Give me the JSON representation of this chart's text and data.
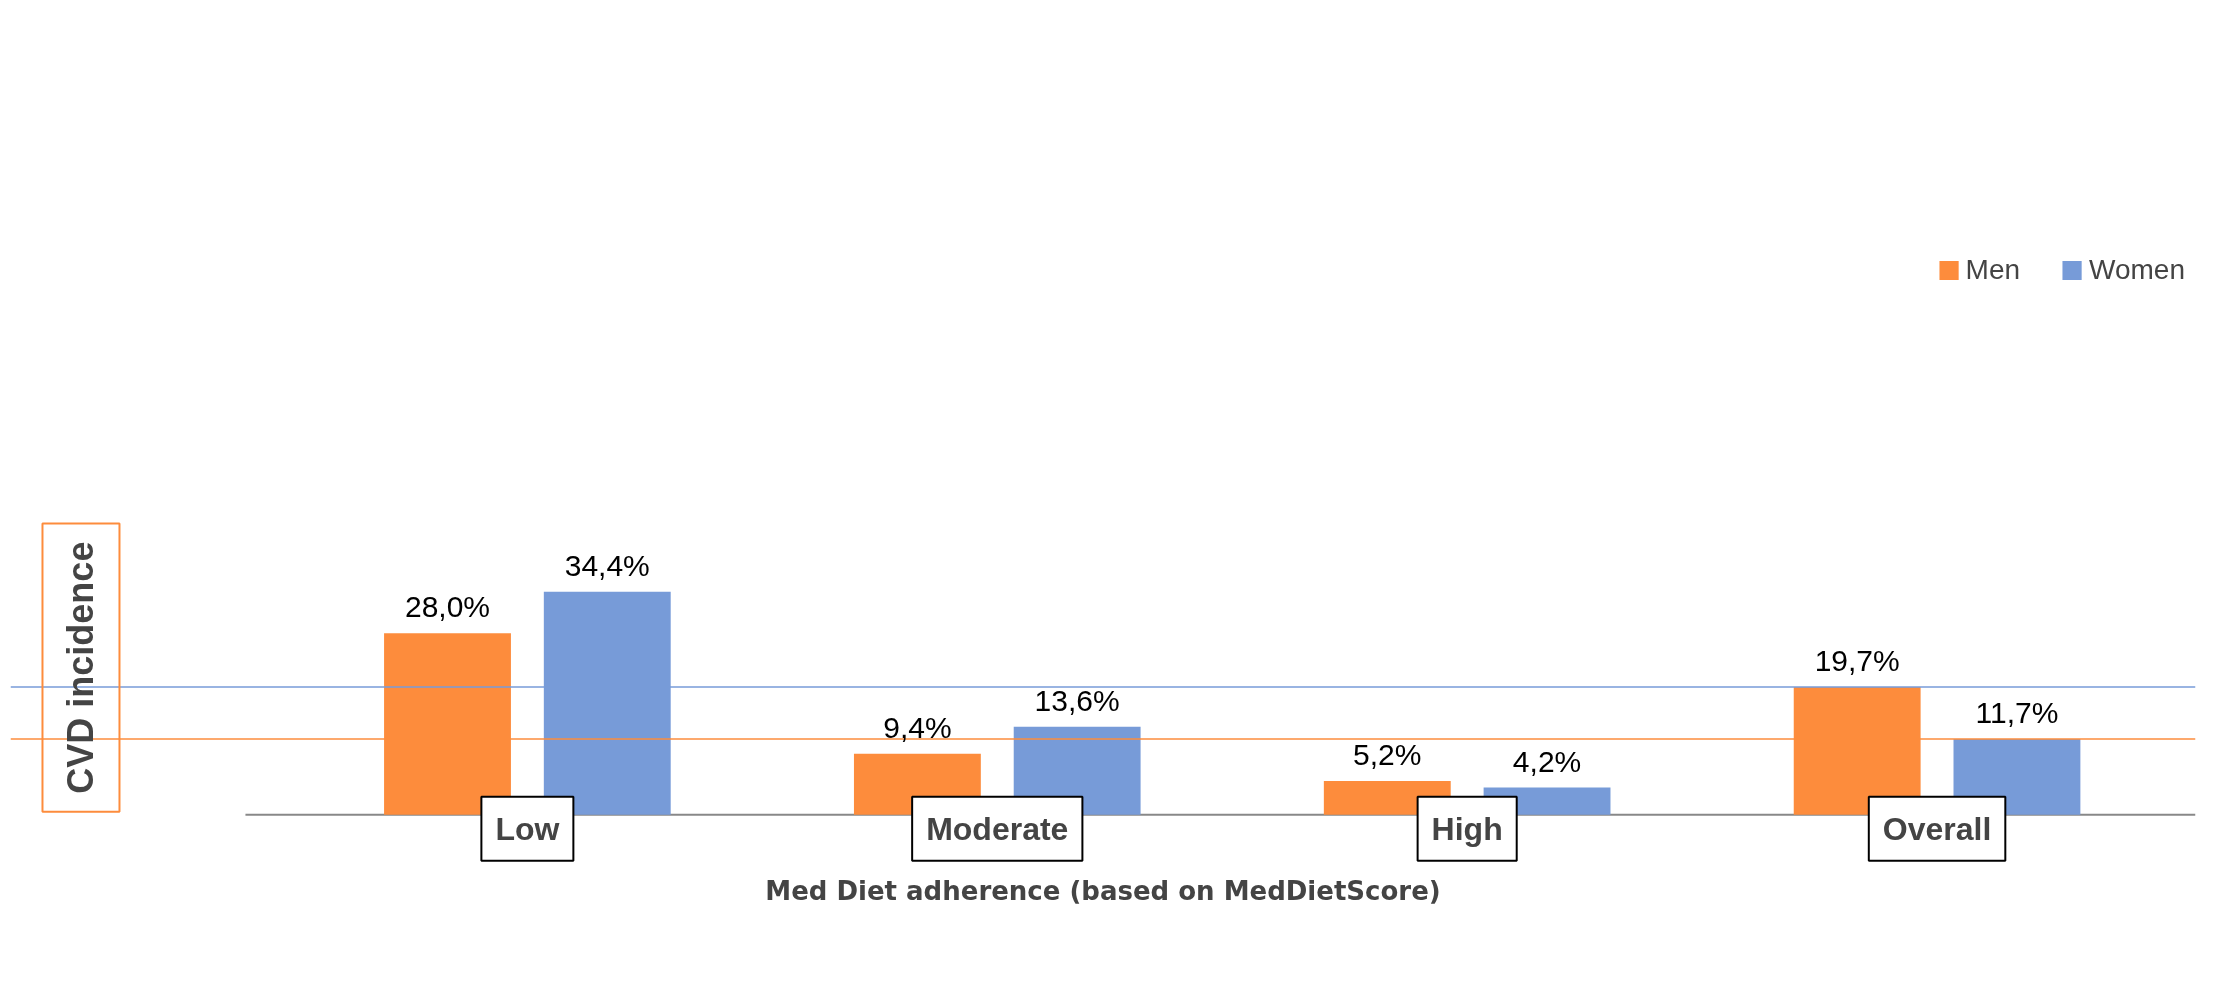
{
  "chart_data": {
    "type": "bar",
    "xlabel": "Med Diet adherence (based on MedDietScore)",
    "ylabel": "CVD incidence",
    "categories": [
      "Low",
      "Moderate",
      "High",
      "Overall"
    ],
    "series": [
      {
        "name": "Men",
        "color": "#fd8c3c",
        "values": [
          28.0,
          9.4,
          5.2,
          19.7
        ],
        "value_labels": [
          "28,0%",
          "9,4%",
          "5,2%",
          "19,7%"
        ]
      },
      {
        "name": "Women",
        "color": "#779bd8",
        "values": [
          34.4,
          13.6,
          4.2,
          11.7
        ],
        "value_labels": [
          "34,4%",
          "13,6%",
          "4,2%",
          "11,7%"
        ]
      }
    ],
    "ref_lines": [
      {
        "axis": "y",
        "value": 19.7,
        "color": "#779bd8"
      },
      {
        "axis": "y",
        "value": 11.7,
        "color": "#fd8c3c"
      }
    ],
    "legend": "top",
    "grid": false
  }
}
